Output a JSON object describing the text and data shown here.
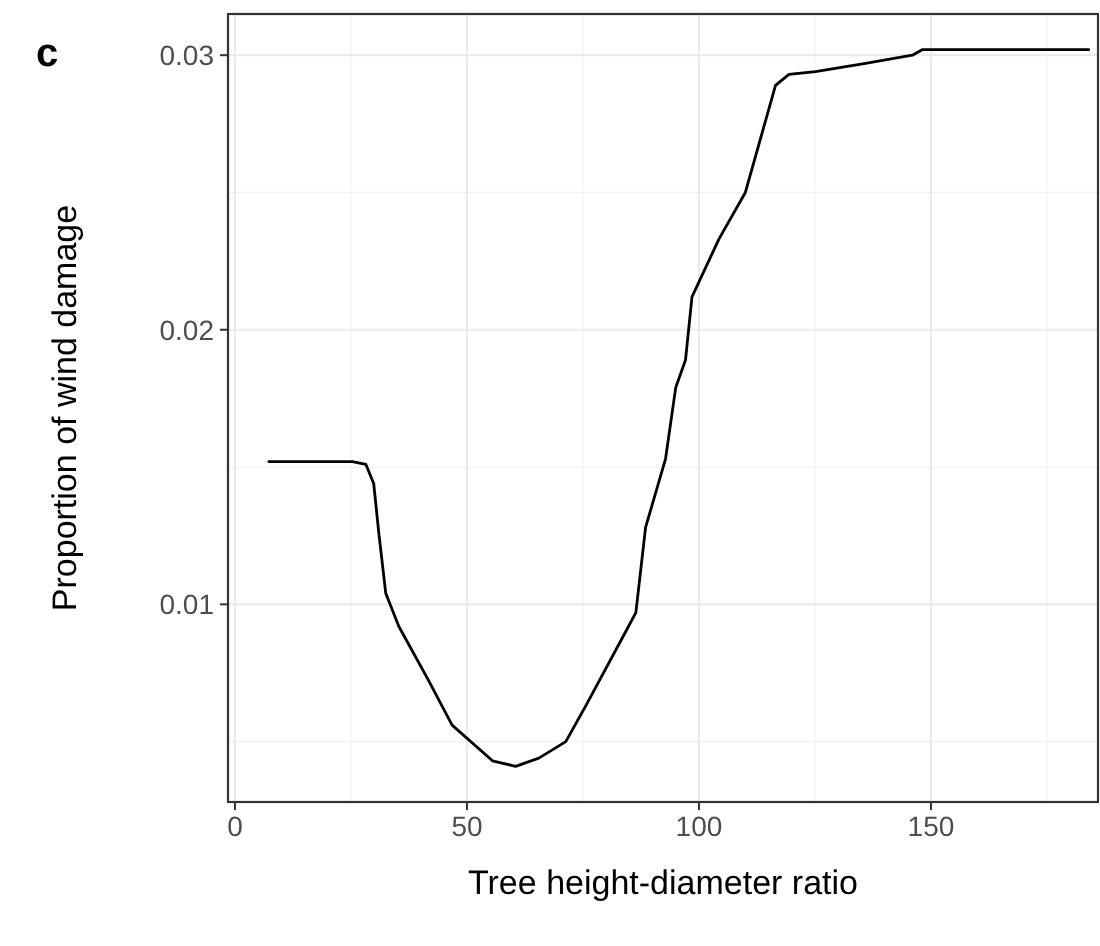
{
  "chart_data": {
    "type": "line",
    "title": "c",
    "xlabel": "Tree height-diameter ratio",
    "ylabel": "Proportion of wind damage",
    "xlim": [
      -1.5,
      186
    ],
    "xticks": [
      0,
      50,
      100,
      150
    ],
    "ylim": [
      0.0028,
      0.0315
    ],
    "yticks": [
      0.01,
      0.02,
      0.03
    ],
    "grid": true,
    "marker": "none",
    "line_style": "solid",
    "series": [
      {
        "color": "#000000",
        "x": [
          7.3,
          25.3,
          28.2,
          29.9,
          31,
          32.5,
          35.3,
          41.8,
          46.8,
          55.5,
          60.5,
          65.5,
          71.3,
          75.6,
          84.2,
          86.4,
          88.5,
          92.8,
          95,
          97.1,
          98.5,
          104.3,
          110,
          116.5,
          119.4,
          125.1,
          135.9,
          146,
          148.1,
          184
        ],
        "values": [
          0.0152,
          0.0152,
          0.0151,
          0.0144,
          0.0126,
          0.0104,
          0.0092,
          0.0072,
          0.0056,
          0.0043,
          0.0041,
          0.0044,
          0.005,
          0.0063,
          0.009,
          0.0097,
          0.0128,
          0.0153,
          0.0179,
          0.0189,
          0.0212,
          0.0233,
          0.025,
          0.0289,
          0.0293,
          0.0294,
          0.0297,
          0.03,
          0.0302,
          0.0302
        ]
      }
    ]
  }
}
